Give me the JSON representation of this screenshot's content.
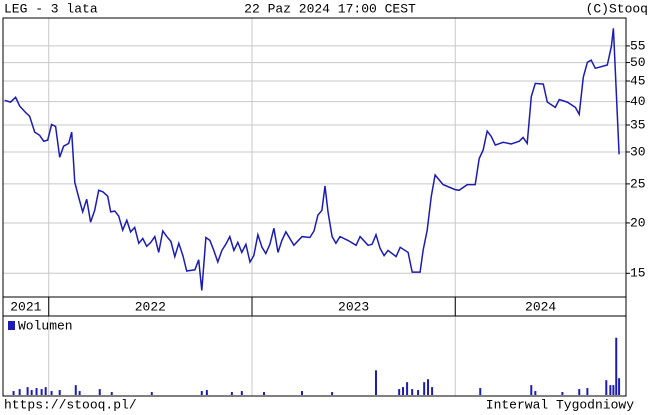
{
  "header": {
    "left": "LEG - 3 lata",
    "center": "22 Paz 2024 17:00 CEST",
    "right": "(C)Stooq"
  },
  "chart_data": [
    {
      "type": "line",
      "color": "#1c1cb4",
      "log_scale": true,
      "grid": true,
      "x": [
        2021.783,
        2021.812,
        2021.837,
        2021.857,
        2021.886,
        2021.906,
        2021.931,
        2021.955,
        2021.975,
        2021.995,
        2022.014,
        2022.034,
        2022.054,
        2022.073,
        2022.098,
        2022.113,
        2022.128,
        2022.147,
        2022.167,
        2022.187,
        2022.206,
        2022.226,
        2022.246,
        2022.266,
        2022.29,
        2022.305,
        2022.325,
        2022.344,
        2022.364,
        2022.384,
        2022.403,
        2022.423,
        2022.443,
        2022.463,
        2022.482,
        2022.502,
        2022.522,
        2022.541,
        2022.561,
        2022.581,
        2022.601,
        2022.62,
        2022.64,
        2022.66,
        2022.679,
        2022.719,
        2022.738,
        2022.753,
        2022.773,
        2022.793,
        2022.812,
        2022.832,
        2022.852,
        2022.871,
        2022.891,
        2022.911,
        2022.93,
        2022.95,
        2022.97,
        2022.99,
        2023.009,
        2023.029,
        2023.049,
        2023.068,
        2023.088,
        2023.108,
        2023.128,
        2023.147,
        2023.167,
        2023.206,
        2023.246,
        2023.285,
        2023.305,
        2023.324,
        2023.344,
        2023.359,
        2023.374,
        2023.394,
        2023.413,
        2023.433,
        2023.472,
        2023.512,
        2023.532,
        2023.571,
        2023.591,
        2023.61,
        2023.63,
        2023.65,
        2023.669,
        2023.709,
        2023.729,
        2023.768,
        2023.788,
        2023.827,
        2023.842,
        2023.862,
        2023.882,
        2023.901,
        2023.94,
        2023.999,
        2024.019,
        2024.059,
        2024.098,
        2024.118,
        2024.137,
        2024.157,
        2024.177,
        2024.197,
        2024.236,
        2024.275,
        2024.315,
        2024.334,
        2024.354,
        2024.374,
        2024.394,
        2024.433,
        2024.453,
        2024.492,
        2024.512,
        2024.551,
        2024.591,
        2024.61,
        2024.63,
        2024.65,
        2024.669,
        2024.689,
        2024.748,
        2024.768,
        2024.778,
        2024.792,
        2024.806
      ],
      "values": [
        40.3,
        39.9,
        41.0,
        39.0,
        37.6,
        36.8,
        33.6,
        33.0,
        31.9,
        32.1,
        35.1,
        34.7,
        29.1,
        31.0,
        31.5,
        33.6,
        25.2,
        23.2,
        21.3,
        22.9,
        20.1,
        21.5,
        24.1,
        23.9,
        23.3,
        21.3,
        21.4,
        20.8,
        19.2,
        20.3,
        19.0,
        19.5,
        17.8,
        18.3,
        17.5,
        17.9,
        18.5,
        16.9,
        19.1,
        18.5,
        18.0,
        16.5,
        17.8,
        16.6,
        15.2,
        15.3,
        16.2,
        13.6,
        18.4,
        18.1,
        17.1,
        16.0,
        17.1,
        17.7,
        18.5,
        17.1,
        17.9,
        16.9,
        17.7,
        16.0,
        16.6,
        18.7,
        17.4,
        16.8,
        17.7,
        19.4,
        16.9,
        18.1,
        19.0,
        17.6,
        18.5,
        18.4,
        19.1,
        20.9,
        21.5,
        24.7,
        21.3,
        18.5,
        17.8,
        18.5,
        18.1,
        17.6,
        18.5,
        17.6,
        17.7,
        18.7,
        17.3,
        16.6,
        17.1,
        16.5,
        17.4,
        16.9,
        15.1,
        15.1,
        17.1,
        19.2,
        23.3,
        26.3,
        24.9,
        24.2,
        24.1,
        24.9,
        24.9,
        28.9,
        30.3,
        33.8,
        32.8,
        31.2,
        31.7,
        31.4,
        31.9,
        32.6,
        31.5,
        41.2,
        44.4,
        44.2,
        39.9,
        38.7,
        40.5,
        39.9,
        38.7,
        37.2,
        46.0,
        50.1,
        50.7,
        48.4,
        49.3,
        54.9,
        60.8,
        42.7,
        29.6
      ],
      "xlim": [
        2021.775,
        2024.84
      ],
      "xticks": [
        2021,
        2022,
        2023,
        2024
      ],
      "ylim": [
        13.1,
        64.5
      ],
      "yticks": [
        15,
        20,
        25,
        30,
        35,
        40,
        45,
        50,
        55
      ]
    },
    {
      "type": "bar",
      "x": [
        2021.827,
        2021.857,
        2021.896,
        2021.916,
        2021.94,
        2021.965,
        2021.985,
        2022.014,
        2022.054,
        2022.133,
        2022.152,
        2022.251,
        2022.31,
        2022.507,
        2022.753,
        2022.778,
        2022.901,
        2022.95,
        2023.059,
        2023.246,
        2023.394,
        2023.61,
        2023.724,
        2023.743,
        2023.763,
        2023.788,
        2023.817,
        2023.847,
        2023.866,
        2023.886,
        2024.123,
        2024.374,
        2024.394,
        2024.527,
        2024.61,
        2024.65,
        2024.743,
        2024.763,
        2024.778,
        2024.792,
        2024.806
      ],
      "series": [
        {
          "name": "Wolumen",
          "color": "#1c1cb4",
          "values": [
            4,
            6,
            8,
            5,
            7,
            6,
            8,
            4,
            5,
            10,
            4,
            6,
            3,
            3,
            4,
            5,
            3,
            4,
            3,
            4,
            3,
            25,
            6,
            8,
            13,
            6,
            5,
            13,
            16,
            8,
            7,
            10,
            4,
            3,
            6,
            7,
            15,
            10,
            10,
            58,
            17
          ]
        }
      ],
      "xlim": [
        2021.775,
        2024.84
      ],
      "ylim": [
        0,
        78
      ]
    }
  ],
  "footer": {
    "left": "https://stooq.pl/",
    "right": "Interwal Tygodniowy"
  }
}
